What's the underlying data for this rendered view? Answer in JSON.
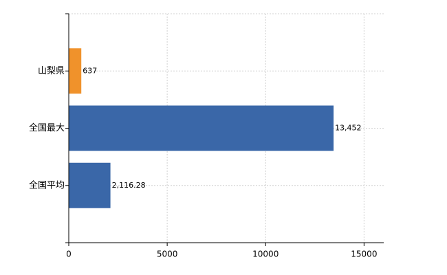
{
  "chart_data": {
    "type": "bar",
    "orientation": "horizontal",
    "categories": [
      "山梨県",
      "全国最大",
      "全国平均"
    ],
    "values": [
      637,
      13452,
      2116.28
    ],
    "value_labels": [
      "637",
      "13,452",
      "2,116.28"
    ],
    "colors": [
      "#f0922b",
      "#3a67a8",
      "#3a67a8"
    ],
    "xlim": [
      0,
      16000
    ],
    "xticks": [
      0,
      5000,
      10000,
      15000
    ],
    "grid": true
  }
}
